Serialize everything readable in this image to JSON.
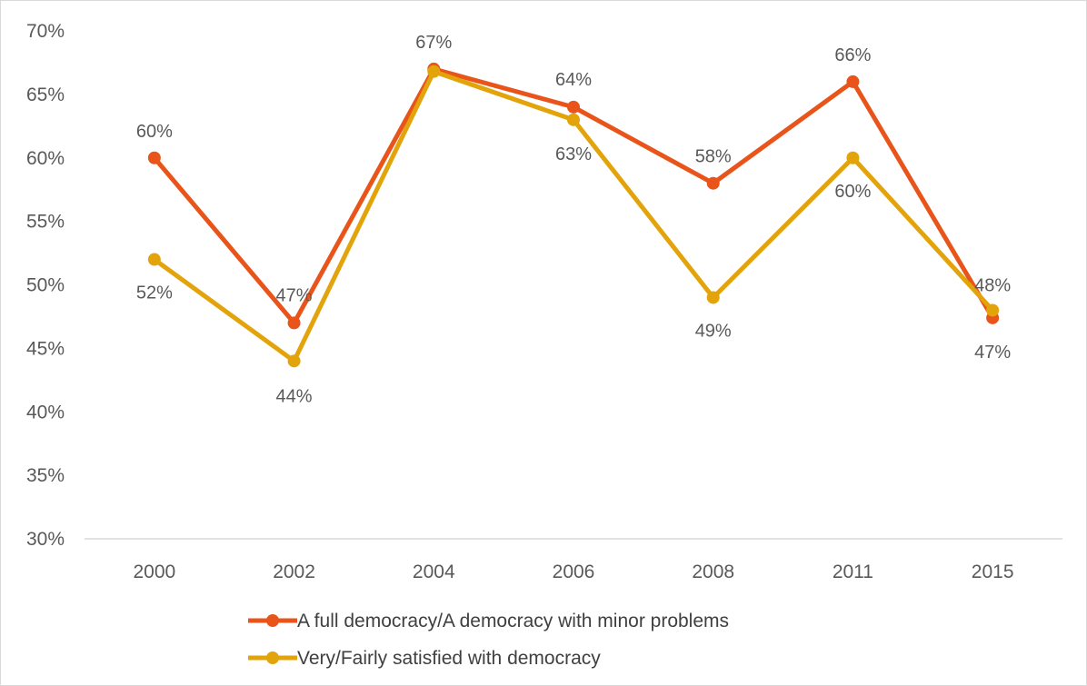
{
  "chart_data": {
    "type": "line",
    "title": "",
    "xlabel": "",
    "ylabel": "",
    "categories": [
      "2000",
      "2002",
      "2004",
      "2006",
      "2008",
      "2011",
      "2015"
    ],
    "ylim": [
      0.3,
      0.7
    ],
    "yticks": [
      0.3,
      0.35,
      0.4,
      0.45,
      0.5,
      0.55,
      0.6,
      0.65,
      0.7
    ],
    "ytick_labels": [
      "30%",
      "35%",
      "40%",
      "45%",
      "50%",
      "55%",
      "60%",
      "65%",
      "70%"
    ],
    "grid": false,
    "legend_position": "bottom",
    "series": [
      {
        "name": "A full democracy/A democracy with minor problems",
        "color": "#E8541A",
        "values": [
          0.6,
          0.47,
          0.67,
          0.64,
          0.58,
          0.66,
          0.474
        ],
        "labels": [
          "60%",
          "47%",
          "67%",
          "64%",
          "58%",
          "66%",
          "47%"
        ]
      },
      {
        "name": "Very/Fairly satisfied with democracy",
        "color": "#E3A40B",
        "values": [
          0.52,
          0.44,
          0.668,
          0.63,
          0.49,
          0.6,
          0.48
        ],
        "labels": [
          "52%",
          "44%",
          "67%",
          "63%",
          "49%",
          "60%",
          "48%"
        ]
      }
    ]
  }
}
